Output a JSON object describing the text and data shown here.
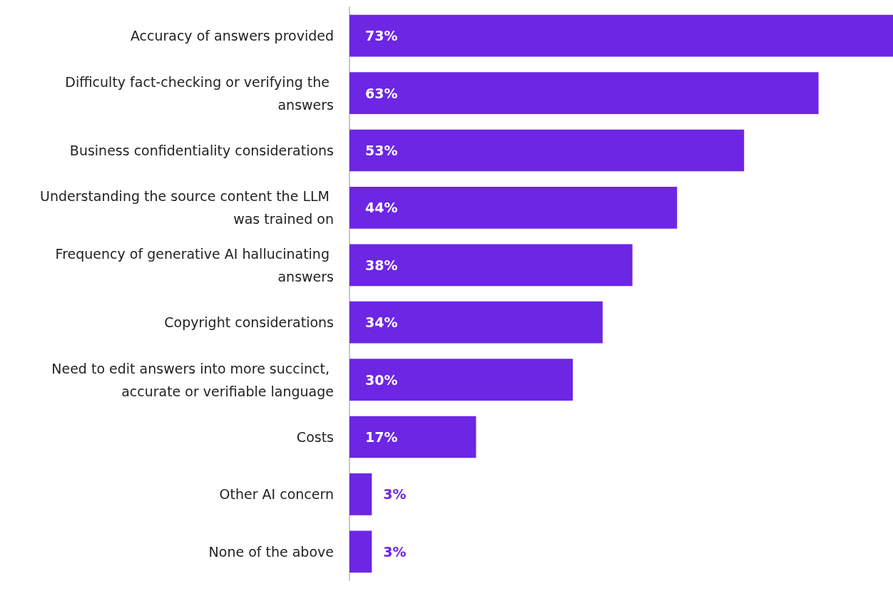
{
  "chart_data": {
    "type": "bar",
    "orientation": "horizontal",
    "categories": [
      "Accuracy of answers provided",
      "Difficulty fact-checking or verifying the answers",
      "Business confidentiality considerations",
      "Understanding the source content the LLM was trained on",
      "Frequency of generative AI hallucinating answers",
      "Copyright considerations",
      "Need to edit answers into more succinct, accurate or verifiable language",
      "Costs",
      "Other AI concern",
      "None of the above"
    ],
    "values": [
      73,
      63,
      53,
      44,
      38,
      34,
      30,
      17,
      3,
      3
    ],
    "value_labels": [
      "73%",
      "63%",
      "53%",
      "44%",
      "38%",
      "34%",
      "30%",
      "17%",
      "3%",
      "3%"
    ],
    "color": "#6c26e4"
  }
}
